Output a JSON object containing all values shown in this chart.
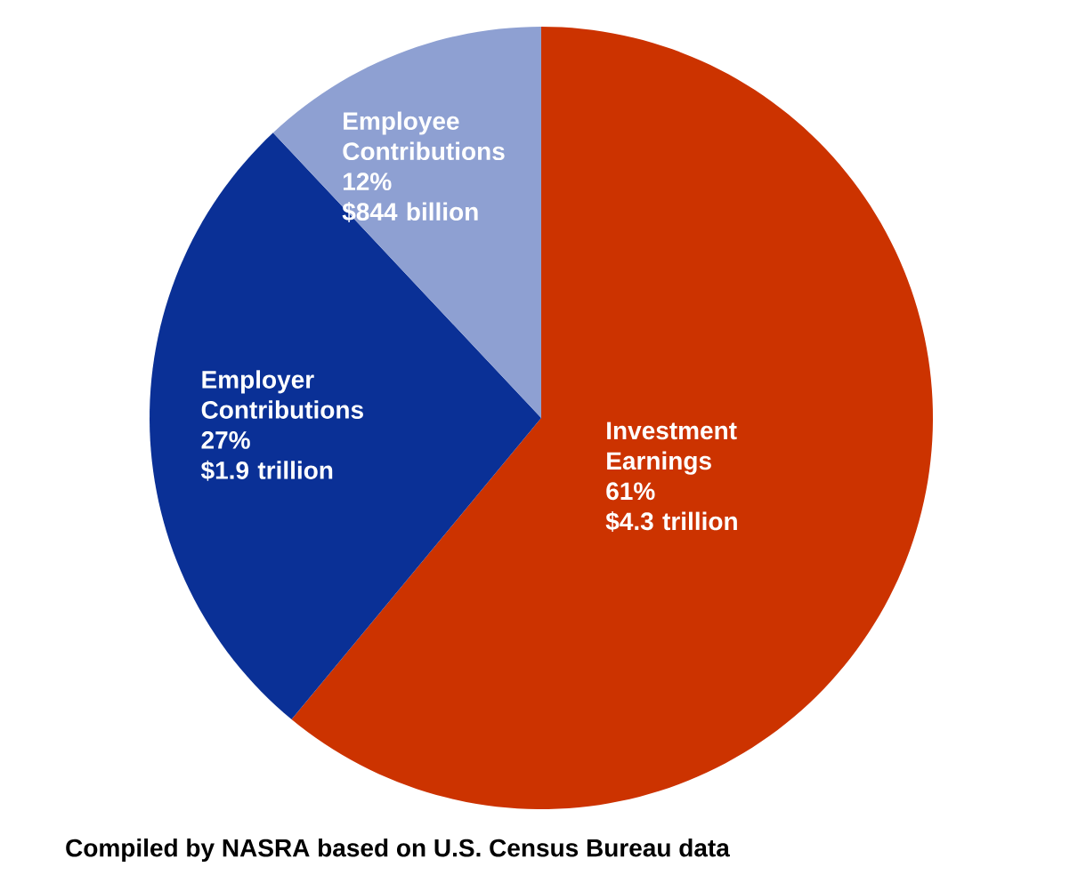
{
  "chart_data": {
    "type": "pie",
    "categories": [
      "Investment Earnings",
      "Employer Contributions",
      "Employee Contributions"
    ],
    "values": [
      61,
      27,
      12
    ],
    "value_labels": [
      "61%",
      "27%",
      "12%"
    ],
    "colors": [
      "#cc3300",
      "#0a3096",
      "#8ea0d2"
    ],
    "annotations": [
      {
        "text": "$4.3 trillion",
        "x": "Investment Earnings"
      },
      {
        "text": "$1.9 trillion",
        "x": "Employer Contributions"
      },
      {
        "text": "$844 billion",
        "x": "Employee Contributions"
      },
      "Compiled by NASRA based on U.S. Census Bureau data"
    ]
  }
}
